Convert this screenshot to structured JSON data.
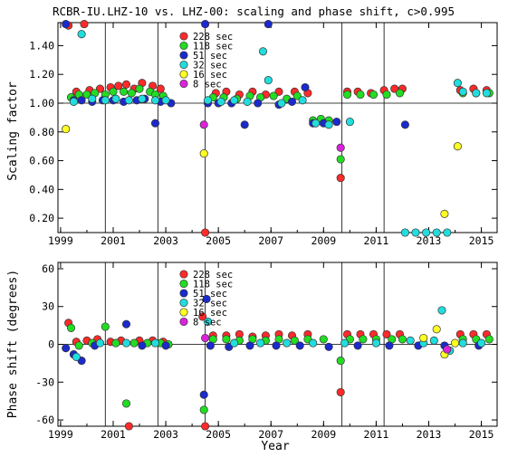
{
  "title": "RCBR-IU.LHZ-10 vs. LHZ-00: scaling and phase shift, c>0.995",
  "xlabel": "Year",
  "chart_data": [
    {
      "type": "scatter",
      "ylabel": "Scaling factor",
      "xlim": [
        1998.9,
        2015.6
      ],
      "ylim": [
        0.1,
        1.56
      ],
      "xticks": [
        1999,
        2001,
        2003,
        2005,
        2007,
        2009,
        2011,
        2013,
        2015
      ],
      "yticks": [
        "0.20",
        "0.40",
        "0.60",
        "0.80",
        "1.00",
        "1.20",
        "1.40"
      ],
      "ytick_values": [
        0.2,
        0.4,
        0.6,
        0.8,
        1.0,
        1.2,
        1.4
      ],
      "reference_line": 1.0,
      "vertical_lines": [
        2000.7,
        2002.7,
        2004.5,
        2009.7,
        2011.3
      ],
      "legend": {
        "placement": "top-center"
      },
      "series": [
        {
          "name": "228 sec",
          "color": "#ff2a2a",
          "points": [
            [
              1999.3,
              1.54
            ],
            [
              1999.6,
              1.08
            ],
            [
              1999.9,
              1.55
            ],
            [
              2000.1,
              1.09
            ],
            [
              2000.5,
              1.1
            ],
            [
              2000.9,
              1.11
            ],
            [
              2001.2,
              1.12
            ],
            [
              2001.5,
              1.13
            ],
            [
              2001.8,
              1.1
            ],
            [
              2002.1,
              1.14
            ],
            [
              2002.5,
              1.12
            ],
            [
              2002.8,
              1.1
            ],
            [
              2004.5,
              0.1
            ],
            [
              2004.9,
              1.07
            ],
            [
              2005.3,
              1.08
            ],
            [
              2005.8,
              1.06
            ],
            [
              2006.3,
              1.08
            ],
            [
              2006.8,
              1.06
            ],
            [
              2007.3,
              1.08
            ],
            [
              2007.9,
              1.08
            ],
            [
              2008.4,
              1.07
            ],
            [
              2009.65,
              0.48
            ],
            [
              2009.9,
              1.08
            ],
            [
              2010.3,
              1.08
            ],
            [
              2010.8,
              1.07
            ],
            [
              2011.3,
              1.09
            ],
            [
              2011.7,
              1.1
            ],
            [
              2012.0,
              1.1
            ],
            [
              2014.2,
              1.09
            ],
            [
              2014.7,
              1.1
            ],
            [
              2015.2,
              1.09
            ]
          ]
        },
        {
          "name": "118 sec",
          "color": "#22dd22",
          "points": [
            [
              1999.4,
              1.04
            ],
            [
              1999.7,
              1.06
            ],
            [
              2000.0,
              1.06
            ],
            [
              2000.3,
              1.07
            ],
            [
              2000.7,
              1.06
            ],
            [
              2001.0,
              1.08
            ],
            [
              2001.4,
              1.08
            ],
            [
              2001.7,
              1.07
            ],
            [
              2002.0,
              1.1
            ],
            [
              2002.4,
              1.08
            ],
            [
              2002.6,
              1.06
            ],
            [
              2002.9,
              1.05
            ],
            [
              2004.8,
              1.04
            ],
            [
              2005.2,
              1.04
            ],
            [
              2005.7,
              1.03
            ],
            [
              2006.2,
              1.05
            ],
            [
              2006.6,
              1.04
            ],
            [
              2007.1,
              1.05
            ],
            [
              2007.6,
              1.03
            ],
            [
              2008.0,
              1.05
            ],
            [
              2008.6,
              0.88
            ],
            [
              2008.9,
              0.89
            ],
            [
              2009.2,
              0.88
            ],
            [
              2009.65,
              0.61
            ],
            [
              2009.9,
              1.06
            ],
            [
              2010.4,
              1.06
            ],
            [
              2010.9,
              1.06
            ],
            [
              2011.4,
              1.06
            ],
            [
              2011.9,
              1.07
            ],
            [
              2014.3,
              1.07
            ],
            [
              2014.8,
              1.07
            ],
            [
              2015.3,
              1.07
            ]
          ]
        },
        {
          "name": "51 sec",
          "color": "#1a2acc",
          "points": [
            [
              1999.2,
              1.55
            ],
            [
              1999.5,
              1.02
            ],
            [
              1999.8,
              1.02
            ],
            [
              2000.2,
              1.01
            ],
            [
              2000.6,
              1.02
            ],
            [
              2001.0,
              1.02
            ],
            [
              2001.4,
              1.01
            ],
            [
              2001.9,
              1.02
            ],
            [
              2002.2,
              1.03
            ],
            [
              2002.6,
              0.86
            ],
            [
              2002.8,
              1.01
            ],
            [
              2003.2,
              1.0
            ],
            [
              2004.5,
              1.55
            ],
            [
              2004.6,
              1.0
            ],
            [
              2005.0,
              1.0
            ],
            [
              2005.5,
              1.0
            ],
            [
              2006.0,
              0.85
            ],
            [
              2006.5,
              1.0
            ],
            [
              2006.9,
              1.55
            ],
            [
              2007.3,
              0.99
            ],
            [
              2007.8,
              1.01
            ],
            [
              2008.3,
              1.11
            ],
            [
              2008.6,
              0.86
            ],
            [
              2009.0,
              0.86
            ],
            [
              2009.5,
              0.87
            ],
            [
              2012.1,
              0.85
            ]
          ]
        },
        {
          "name": "32 sec",
          "color": "#22dddd",
          "points": [
            [
              1999.5,
              1.01
            ],
            [
              1999.8,
              1.48
            ],
            [
              2000.2,
              1.03
            ],
            [
              2000.7,
              1.02
            ],
            [
              2001.1,
              1.03
            ],
            [
              2001.6,
              1.02
            ],
            [
              2002.1,
              1.03
            ],
            [
              2002.6,
              1.02
            ],
            [
              2003.0,
              1.02
            ],
            [
              2004.6,
              1.02
            ],
            [
              2005.1,
              1.01
            ],
            [
              2005.6,
              1.02
            ],
            [
              2006.1,
              1.01
            ],
            [
              2006.7,
              1.36
            ],
            [
              2006.9,
              1.16
            ],
            [
              2007.4,
              1.0
            ],
            [
              2008.2,
              1.02
            ],
            [
              2008.7,
              0.86
            ],
            [
              2009.2,
              0.85
            ],
            [
              2010.0,
              0.87
            ],
            [
              2012.1,
              0.1
            ],
            [
              2012.5,
              0.1
            ],
            [
              2012.9,
              0.1
            ],
            [
              2013.3,
              0.1
            ],
            [
              2013.7,
              0.1
            ],
            [
              2014.1,
              1.14
            ],
            [
              2014.3,
              1.08
            ],
            [
              2014.8,
              1.07
            ],
            [
              2015.2,
              1.07
            ]
          ]
        },
        {
          "name": "16 sec",
          "color": "#ffff22",
          "points": [
            [
              1999.2,
              0.82
            ],
            [
              2004.45,
              0.65
            ],
            [
              2013.6,
              0.23
            ],
            [
              2014.1,
              0.7
            ]
          ]
        },
        {
          "name": "8 sec",
          "color": "#dd22dd",
          "points": [
            [
              2004.45,
              0.85
            ],
            [
              2009.65,
              0.69
            ]
          ]
        }
      ]
    },
    {
      "type": "scatter",
      "ylabel": "Phase shift (degrees)",
      "xlim": [
        1998.9,
        2015.6
      ],
      "ylim": [
        -65,
        65
      ],
      "xticks": [
        1999,
        2001,
        2003,
        2005,
        2007,
        2009,
        2011,
        2013,
        2015
      ],
      "yticks": [
        "60",
        "30",
        "0",
        "-30",
        "-60"
      ],
      "ytick_values": [
        60,
        30,
        0,
        -30,
        -60
      ],
      "reference_line": 0,
      "vertical_lines": [
        2000.7,
        2002.7,
        2004.5,
        2009.7,
        2011.3
      ],
      "legend": {
        "placement": "top-center"
      },
      "series": [
        {
          "name": "228 sec",
          "color": "#ff2a2a",
          "points": [
            [
              1999.3,
              17
            ],
            [
              1999.6,
              2
            ],
            [
              2000.0,
              3
            ],
            [
              2000.4,
              4
            ],
            [
              2000.9,
              2
            ],
            [
              2001.3,
              3
            ],
            [
              2001.6,
              -65
            ],
            [
              2002.0,
              3
            ],
            [
              2002.5,
              3
            ],
            [
              2002.9,
              2
            ],
            [
              2004.4,
              22
            ],
            [
              2004.5,
              -65
            ],
            [
              2004.8,
              7
            ],
            [
              2005.3,
              7
            ],
            [
              2005.8,
              8
            ],
            [
              2006.3,
              6
            ],
            [
              2006.8,
              7
            ],
            [
              2007.3,
              8
            ],
            [
              2007.8,
              7
            ],
            [
              2008.4,
              8
            ],
            [
              2009.65,
              -38
            ],
            [
              2009.9,
              8
            ],
            [
              2010.4,
              8
            ],
            [
              2010.9,
              8
            ],
            [
              2011.4,
              8
            ],
            [
              2011.9,
              8
            ],
            [
              2014.2,
              8
            ],
            [
              2014.7,
              8
            ],
            [
              2015.2,
              8
            ]
          ]
        },
        {
          "name": "118 sec",
          "color": "#22dd22",
          "points": [
            [
              1999.4,
              13
            ],
            [
              1999.7,
              -1
            ],
            [
              2000.2,
              1
            ],
            [
              2000.7,
              14
            ],
            [
              2001.1,
              1
            ],
            [
              2001.5,
              -47
            ],
            [
              2001.8,
              1
            ],
            [
              2002.3,
              1
            ],
            [
              2002.8,
              1
            ],
            [
              2003.1,
              0
            ],
            [
              2004.45,
              -52
            ],
            [
              2004.8,
              4
            ],
            [
              2005.3,
              4
            ],
            [
              2005.8,
              3
            ],
            [
              2006.3,
              4
            ],
            [
              2006.8,
              3
            ],
            [
              2007.3,
              4
            ],
            [
              2007.9,
              3
            ],
            [
              2008.4,
              4
            ],
            [
              2009.0,
              4
            ],
            [
              2009.65,
              -13
            ],
            [
              2010.0,
              4
            ],
            [
              2010.5,
              4
            ],
            [
              2011.0,
              4
            ],
            [
              2011.6,
              4
            ],
            [
              2012.0,
              4
            ],
            [
              2014.3,
              4
            ],
            [
              2014.8,
              4
            ],
            [
              2015.3,
              4
            ]
          ]
        },
        {
          "name": "51 sec",
          "color": "#1a2acc",
          "points": [
            [
              1999.2,
              -3
            ],
            [
              1999.5,
              -8
            ],
            [
              1999.8,
              -13
            ],
            [
              2000.3,
              -1
            ],
            [
              2001.5,
              16
            ],
            [
              2002.1,
              -1
            ],
            [
              2003.0,
              -1
            ],
            [
              2004.45,
              -40
            ],
            [
              2004.55,
              36
            ],
            [
              2004.7,
              -1
            ],
            [
              2005.4,
              -2
            ],
            [
              2006.2,
              -1
            ],
            [
              2007.2,
              -1
            ],
            [
              2008.1,
              -1
            ],
            [
              2009.2,
              -2
            ],
            [
              2010.3,
              -1
            ],
            [
              2011.5,
              -1
            ],
            [
              2012.6,
              -1
            ],
            [
              2013.6,
              -1
            ],
            [
              2014.9,
              -1
            ]
          ]
        },
        {
          "name": "32 sec",
          "color": "#22dddd",
          "points": [
            [
              1999.6,
              -10
            ],
            [
              2000.5,
              1
            ],
            [
              2001.5,
              1
            ],
            [
              2002.6,
              1
            ],
            [
              2004.6,
              18
            ],
            [
              2005.6,
              1
            ],
            [
              2006.6,
              1
            ],
            [
              2007.6,
              1
            ],
            [
              2008.6,
              1
            ],
            [
              2009.8,
              1
            ],
            [
              2011.0,
              1
            ],
            [
              2012.3,
              3
            ],
            [
              2012.8,
              1
            ],
            [
              2013.2,
              3
            ],
            [
              2013.5,
              27
            ],
            [
              2013.8,
              -5
            ],
            [
              2014.3,
              1
            ],
            [
              2015.0,
              1
            ]
          ]
        },
        {
          "name": "16 sec",
          "color": "#ffff22",
          "points": [
            [
              2012.8,
              5
            ],
            [
              2013.3,
              12
            ],
            [
              2013.6,
              -8
            ],
            [
              2014.0,
              1
            ]
          ]
        },
        {
          "name": "8 sec",
          "color": "#dd22dd",
          "points": [
            [
              2004.5,
              5
            ],
            [
              2013.7,
              -4
            ]
          ]
        }
      ]
    }
  ]
}
